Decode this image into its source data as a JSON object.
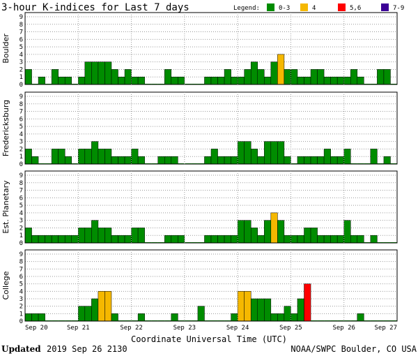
{
  "title": "3-hour K-indices for Last 7 days",
  "legend": {
    "label": "Legend:",
    "items": [
      {
        "label": "0-3",
        "color": "#008c00"
      },
      {
        "label": "4",
        "color": "#f5b800"
      },
      {
        "label": "5,6",
        "color": "#ff0000"
      },
      {
        "label": "7-9",
        "color": "#3c0096"
      }
    ]
  },
  "xlabel": "Coordinate Universal Time (UTC)",
  "footer": {
    "updated_label": "Updated",
    "updated_value": "2019 Sep 26 2130",
    "credit": "NOAA/SWPC Boulder, CO USA"
  },
  "chart_data": [
    {
      "type": "bar",
      "panel": "Boulder",
      "x_ticks": [
        "Sep 20",
        "Sep 21",
        "Sep 22",
        "Sep 23",
        "Sep 24",
        "Sep 25",
        "Sep 26",
        "Sep 27"
      ],
      "y_ticks": [
        "0",
        "1",
        "2",
        "3",
        "4",
        "5",
        "6",
        "7",
        "8",
        "9"
      ],
      "ylim": [
        0,
        9
      ],
      "grid": "horizontal dotted",
      "values": [
        2,
        0,
        1,
        0,
        2,
        1,
        1,
        0,
        1,
        3,
        3,
        3,
        3,
        2,
        1,
        2,
        1,
        1,
        0,
        0,
        0,
        2,
        1,
        1,
        0,
        0,
        0,
        1,
        1,
        1,
        2,
        1,
        1,
        2,
        3,
        2,
        1,
        3,
        4,
        2,
        2,
        1,
        1,
        2,
        2,
        1,
        1,
        1,
        1,
        2,
        1,
        0,
        0,
        2,
        2,
        0
      ]
    },
    {
      "type": "bar",
      "panel": "Fredericksburg",
      "x_ticks": [
        "Sep 20",
        "Sep 21",
        "Sep 22",
        "Sep 23",
        "Sep 24",
        "Sep 25",
        "Sep 26",
        "Sep 27"
      ],
      "y_ticks": [
        "0",
        "1",
        "2",
        "3",
        "4",
        "5",
        "6",
        "7",
        "8",
        "9"
      ],
      "ylim": [
        0,
        9
      ],
      "grid": "horizontal dotted",
      "values": [
        2,
        1,
        0,
        0,
        2,
        2,
        1,
        0,
        2,
        2,
        3,
        2,
        2,
        1,
        1,
        1,
        2,
        1,
        0,
        0,
        1,
        1,
        1,
        0,
        0,
        0,
        0,
        1,
        2,
        1,
        1,
        1,
        3,
        3,
        2,
        1,
        3,
        3,
        3,
        1,
        0,
        1,
        1,
        1,
        1,
        2,
        1,
        1,
        2,
        0,
        0,
        0,
        2,
        0,
        1,
        0
      ]
    },
    {
      "type": "bar",
      "panel": "Est. Planetary",
      "x_ticks": [
        "Sep 20",
        "Sep 21",
        "Sep 22",
        "Sep 23",
        "Sep 24",
        "Sep 25",
        "Sep 26",
        "Sep 27"
      ],
      "y_ticks": [
        "0",
        "1",
        "2",
        "3",
        "4",
        "5",
        "6",
        "7",
        "8",
        "9"
      ],
      "ylim": [
        0,
        9
      ],
      "grid": "horizontal dotted",
      "values": [
        2,
        1,
        1,
        1,
        1,
        1,
        1,
        1,
        2,
        2,
        3,
        2,
        2,
        1,
        1,
        1,
        2,
        2,
        0,
        0,
        0,
        1,
        1,
        1,
        0,
        0,
        0,
        1,
        1,
        1,
        1,
        1,
        3,
        3,
        2,
        1,
        3,
        4,
        3,
        1,
        1,
        1,
        2,
        2,
        1,
        1,
        1,
        1,
        3,
        1,
        1,
        0,
        1,
        0,
        0,
        0
      ]
    },
    {
      "type": "bar",
      "panel": "College",
      "x_ticks": [
        "Sep 20",
        "Sep 21",
        "Sep 22",
        "Sep 23",
        "Sep 24",
        "Sep 25",
        "Sep 26",
        "Sep 27"
      ],
      "y_ticks": [
        "0",
        "1",
        "2",
        "3",
        "4",
        "5",
        "6",
        "7",
        "8",
        "9"
      ],
      "ylim": [
        0,
        9
      ],
      "grid": "horizontal dotted",
      "values": [
        1,
        1,
        1,
        0,
        0,
        0,
        0,
        0,
        2,
        2,
        3,
        4,
        4,
        1,
        0,
        0,
        0,
        1,
        0,
        0,
        0,
        0,
        1,
        0,
        0,
        0,
        2,
        0,
        0,
        0,
        0,
        1,
        4,
        4,
        3,
        3,
        3,
        1,
        1,
        2,
        1,
        3,
        5,
        0,
        0,
        0,
        0,
        0,
        0,
        0,
        1,
        0,
        0,
        0,
        0,
        0
      ]
    }
  ]
}
